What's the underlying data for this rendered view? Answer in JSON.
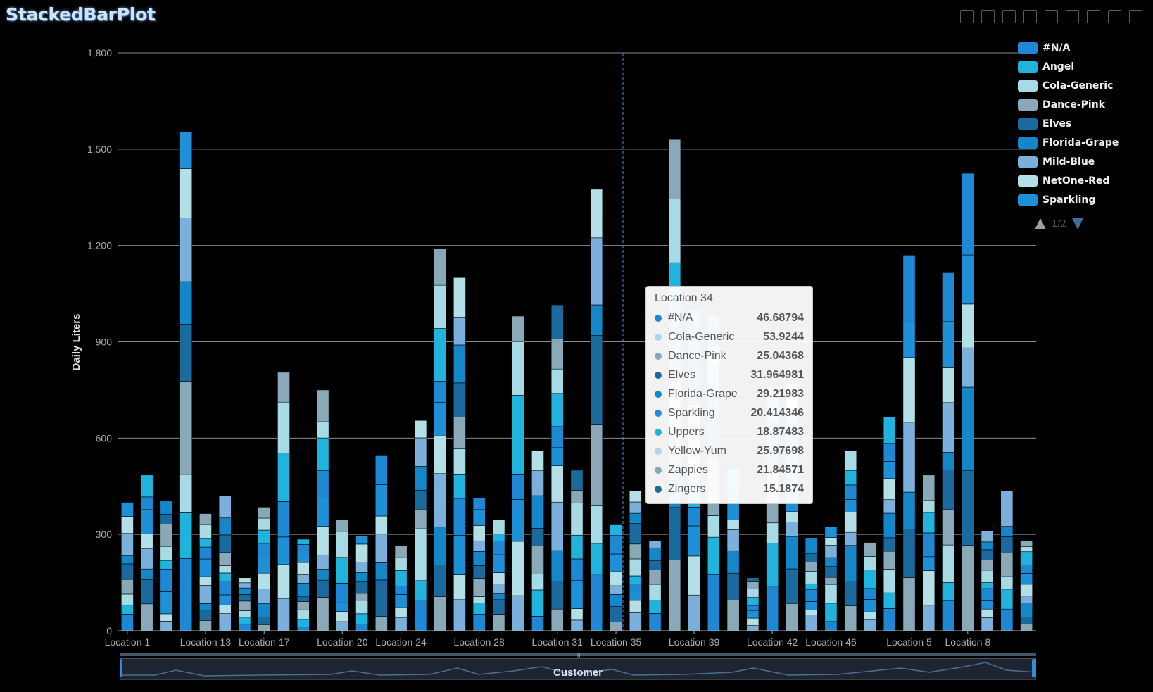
{
  "title": "StackedBarPlot",
  "toolbox": [
    "zoom-in-icon",
    "zoom-reset-icon",
    "download-icon",
    "rect-select-icon",
    "lasso-select-icon",
    "keep-select-icon",
    "clear-select-icon",
    "data-view-icon",
    "restore-icon"
  ],
  "legend": {
    "items": [
      {
        "label": "#N/A",
        "color": "#1e88d4"
      },
      {
        "label": "Angel",
        "color": "#1fb3dd"
      },
      {
        "label": "Cola-Generic",
        "color": "#a6dbe6"
      },
      {
        "label": "Dance-Pink",
        "color": "#89a8b8"
      },
      {
        "label": "Elves",
        "color": "#1b6a9e"
      },
      {
        "label": "Florida-Grape",
        "color": "#1487c9"
      },
      {
        "label": "Mild-Blue",
        "color": "#7bb0dc"
      },
      {
        "label": "NetOne-Red",
        "color": "#b3dfe6"
      },
      {
        "label": "Sparkling",
        "color": "#1e90d8"
      }
    ],
    "page": "1/2"
  },
  "tooltip": {
    "title": "Location 34",
    "rows": [
      {
        "name": "#N/A",
        "value": "46.68794",
        "color": "#1e88d4"
      },
      {
        "name": "Cola-Generic",
        "value": "53.9244",
        "color": "#a6dbe6"
      },
      {
        "name": "Dance-Pink",
        "value": "25.04368",
        "color": "#89a8b8"
      },
      {
        "name": "Elves",
        "value": "31.964981",
        "color": "#1b6a9e"
      },
      {
        "name": "Florida-Grape",
        "value": "29.21983",
        "color": "#1487c9"
      },
      {
        "name": "Sparkling",
        "value": "20.414346",
        "color": "#1e90d8"
      },
      {
        "name": "Uppers",
        "value": "18.87483",
        "color": "#1fb3dd"
      },
      {
        "name": "Yellow-Yum",
        "value": "25.97698",
        "color": "#a6dbe6"
      },
      {
        "name": "Zappies",
        "value": "21.84571",
        "color": "#89a8b8"
      },
      {
        "name": "Zingers",
        "value": "15.1874",
        "color": "#1b6a9e"
      }
    ]
  },
  "zoom_label": "Customer",
  "chart_data": {
    "type": "bar",
    "stacked": true,
    "ylabel": "Daily Liters",
    "ylim": [
      0,
      1800
    ],
    "yticks": [
      "0",
      "300",
      "600",
      "900",
      "1,200",
      "1,500",
      "1,800"
    ],
    "xtick_labels": [
      "Location 1",
      "Location 13",
      "Location 17",
      "Location 20",
      "Location 24",
      "Location 28",
      "Location 31",
      "Location 35",
      "Location 39",
      "Location 42",
      "Location 46",
      "Location 5",
      "Location 8"
    ],
    "grid": true,
    "legend_position": "top-right",
    "highlighted_category": "Location 34",
    "totals": [
      400,
      485,
      405,
      1555,
      365,
      420,
      165,
      385,
      805,
      285,
      750,
      345,
      295,
      545,
      265,
      655,
      1190,
      1100,
      415,
      345,
      980,
      560,
      1015,
      500,
      1375,
      330,
      435,
      280,
      1530,
      1000,
      985,
      505,
      165,
      760,
      770,
      290,
      325,
      560,
      275,
      665,
      1170,
      485,
      1115,
      1425,
      310,
      435,
      280
    ],
    "palette": [
      "#1e88d4",
      "#1fb3dd",
      "#a6dbe6",
      "#89a8b8",
      "#1b6a9e",
      "#1487c9",
      "#7bb0dc",
      "#b3dfe6",
      "#1e90d8"
    ]
  }
}
